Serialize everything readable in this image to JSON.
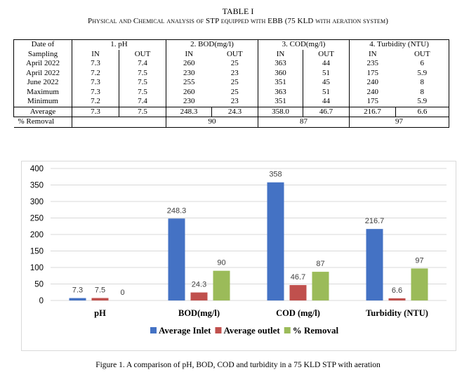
{
  "table": {
    "number": "TABLE I",
    "title": "Physical and Chemical analysis of STP equipped with EBB (75 KLD with aeration system)",
    "date_header_1": "Date of",
    "date_header_2": "Sampling",
    "groups": [
      "1. pH",
      "2. BOD(mg/l)",
      "3. COD(mg/l)",
      "4. Turbidity (NTU)"
    ],
    "in_label": "IN",
    "out_label": "OUT",
    "rows": [
      {
        "label": "April 2022",
        "cells": [
          "7.3",
          "7.4",
          "260",
          "25",
          "363",
          "44",
          "235",
          "6"
        ]
      },
      {
        "label": "April 2022",
        "cells": [
          "7.2",
          "7.5",
          "230",
          "23",
          "360",
          "51",
          "175",
          "5.9"
        ]
      },
      {
        "label": "June 2022",
        "cells": [
          "7.3",
          "7.5",
          "255",
          "25",
          "351",
          "45",
          "240",
          "8"
        ]
      },
      {
        "label": "Maximum",
        "cells": [
          "7.3",
          "7.5",
          "260",
          "25",
          "363",
          "51",
          "240",
          "8"
        ]
      },
      {
        "label": "Minimum",
        "cells": [
          "7.2",
          "7.4",
          "230",
          "23",
          "351",
          "44",
          "175",
          "5.9"
        ]
      },
      {
        "label": "Average",
        "cells": [
          "7.3",
          "7.5",
          "248.3",
          "24.3",
          "358.0",
          "46.7",
          "216.7",
          "6.6"
        ]
      }
    ],
    "removal_label": "% Removal",
    "removal": [
      "",
      "90",
      "87",
      "97"
    ]
  },
  "chart_data": {
    "type": "bar",
    "title": "",
    "xlabel": "",
    "ylabel": "",
    "categories": [
      "pH",
      "BOD(mg/l)",
      "COD (mg/l)",
      "Turbidity (NTU)"
    ],
    "series": [
      {
        "name": "Average Inlet",
        "color": "#4472C4",
        "values": [
          7.3,
          248.3,
          358,
          216.7
        ],
        "labels": [
          "7.3",
          "248.3",
          "358",
          "216.7"
        ]
      },
      {
        "name": "Average outlet",
        "color": "#C0504D",
        "values": [
          7.5,
          24.3,
          46.7,
          6.6
        ],
        "labels": [
          "7.5",
          "24.3",
          "46.7",
          "6.6"
        ]
      },
      {
        "name": "% Removal",
        "color": "#9BBB59",
        "values": [
          0,
          90,
          87,
          97
        ],
        "labels": [
          "0",
          "90",
          "87",
          "97"
        ]
      }
    ],
    "ylim": [
      0,
      400
    ],
    "yticks": [
      0,
      50,
      100,
      150,
      200,
      250,
      300,
      350,
      400
    ],
    "grid": true,
    "legend": "bottom"
  },
  "figure": {
    "caption": "Figure 1.  A comparison of pH, BOD, COD and turbidity in a 75 KLD STP with aeration"
  }
}
